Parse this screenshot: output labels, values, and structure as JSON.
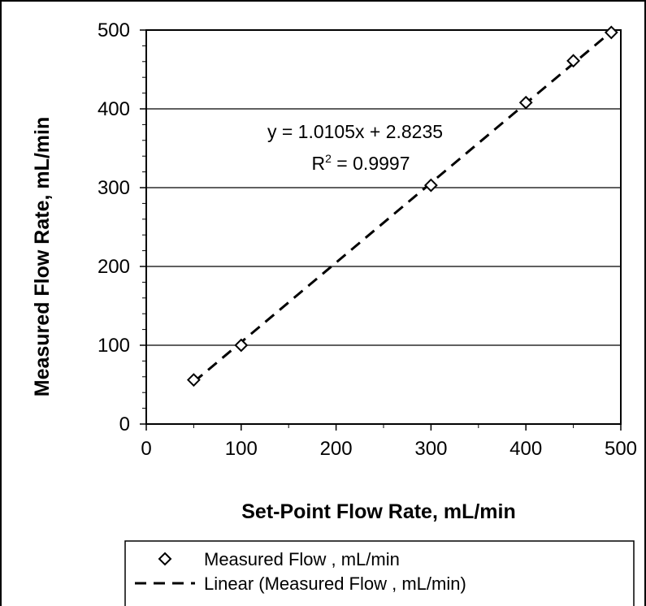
{
  "chart_data": {
    "type": "scatter",
    "xlabel": "Set-Point Flow Rate, mL/min",
    "ylabel": "Measured Flow Rate, mL/min",
    "xlim": [
      0,
      500
    ],
    "ylim": [
      0,
      500
    ],
    "x_ticks": [
      "0",
      "100",
      "200",
      "300",
      "400",
      "500"
    ],
    "y_ticks": [
      "0",
      "100",
      "200",
      "300",
      "400",
      "500"
    ],
    "grid": "horizontal major gridlines",
    "series": [
      {
        "name": "Measured Flow , mL/min",
        "marker": "diamond",
        "x": [
          50,
          100,
          300,
          400,
          450,
          490
        ],
        "y": [
          56,
          100,
          303,
          408,
          461,
          497
        ]
      }
    ],
    "trendline": {
      "name": "Linear (Measured Flow , mL/min)",
      "style": "dashed",
      "slope": 1.0105,
      "intercept": 2.8235,
      "x_range": [
        50,
        490
      ]
    },
    "annotation": {
      "equation": "y = 1.0105x + 2.8235",
      "r2_prefix": "R",
      "r2_sup": "2",
      "r2_value": " = 0.9997"
    },
    "legend_position": "bottom",
    "colors": {
      "line": "#000000",
      "background": "#ffffff"
    }
  }
}
